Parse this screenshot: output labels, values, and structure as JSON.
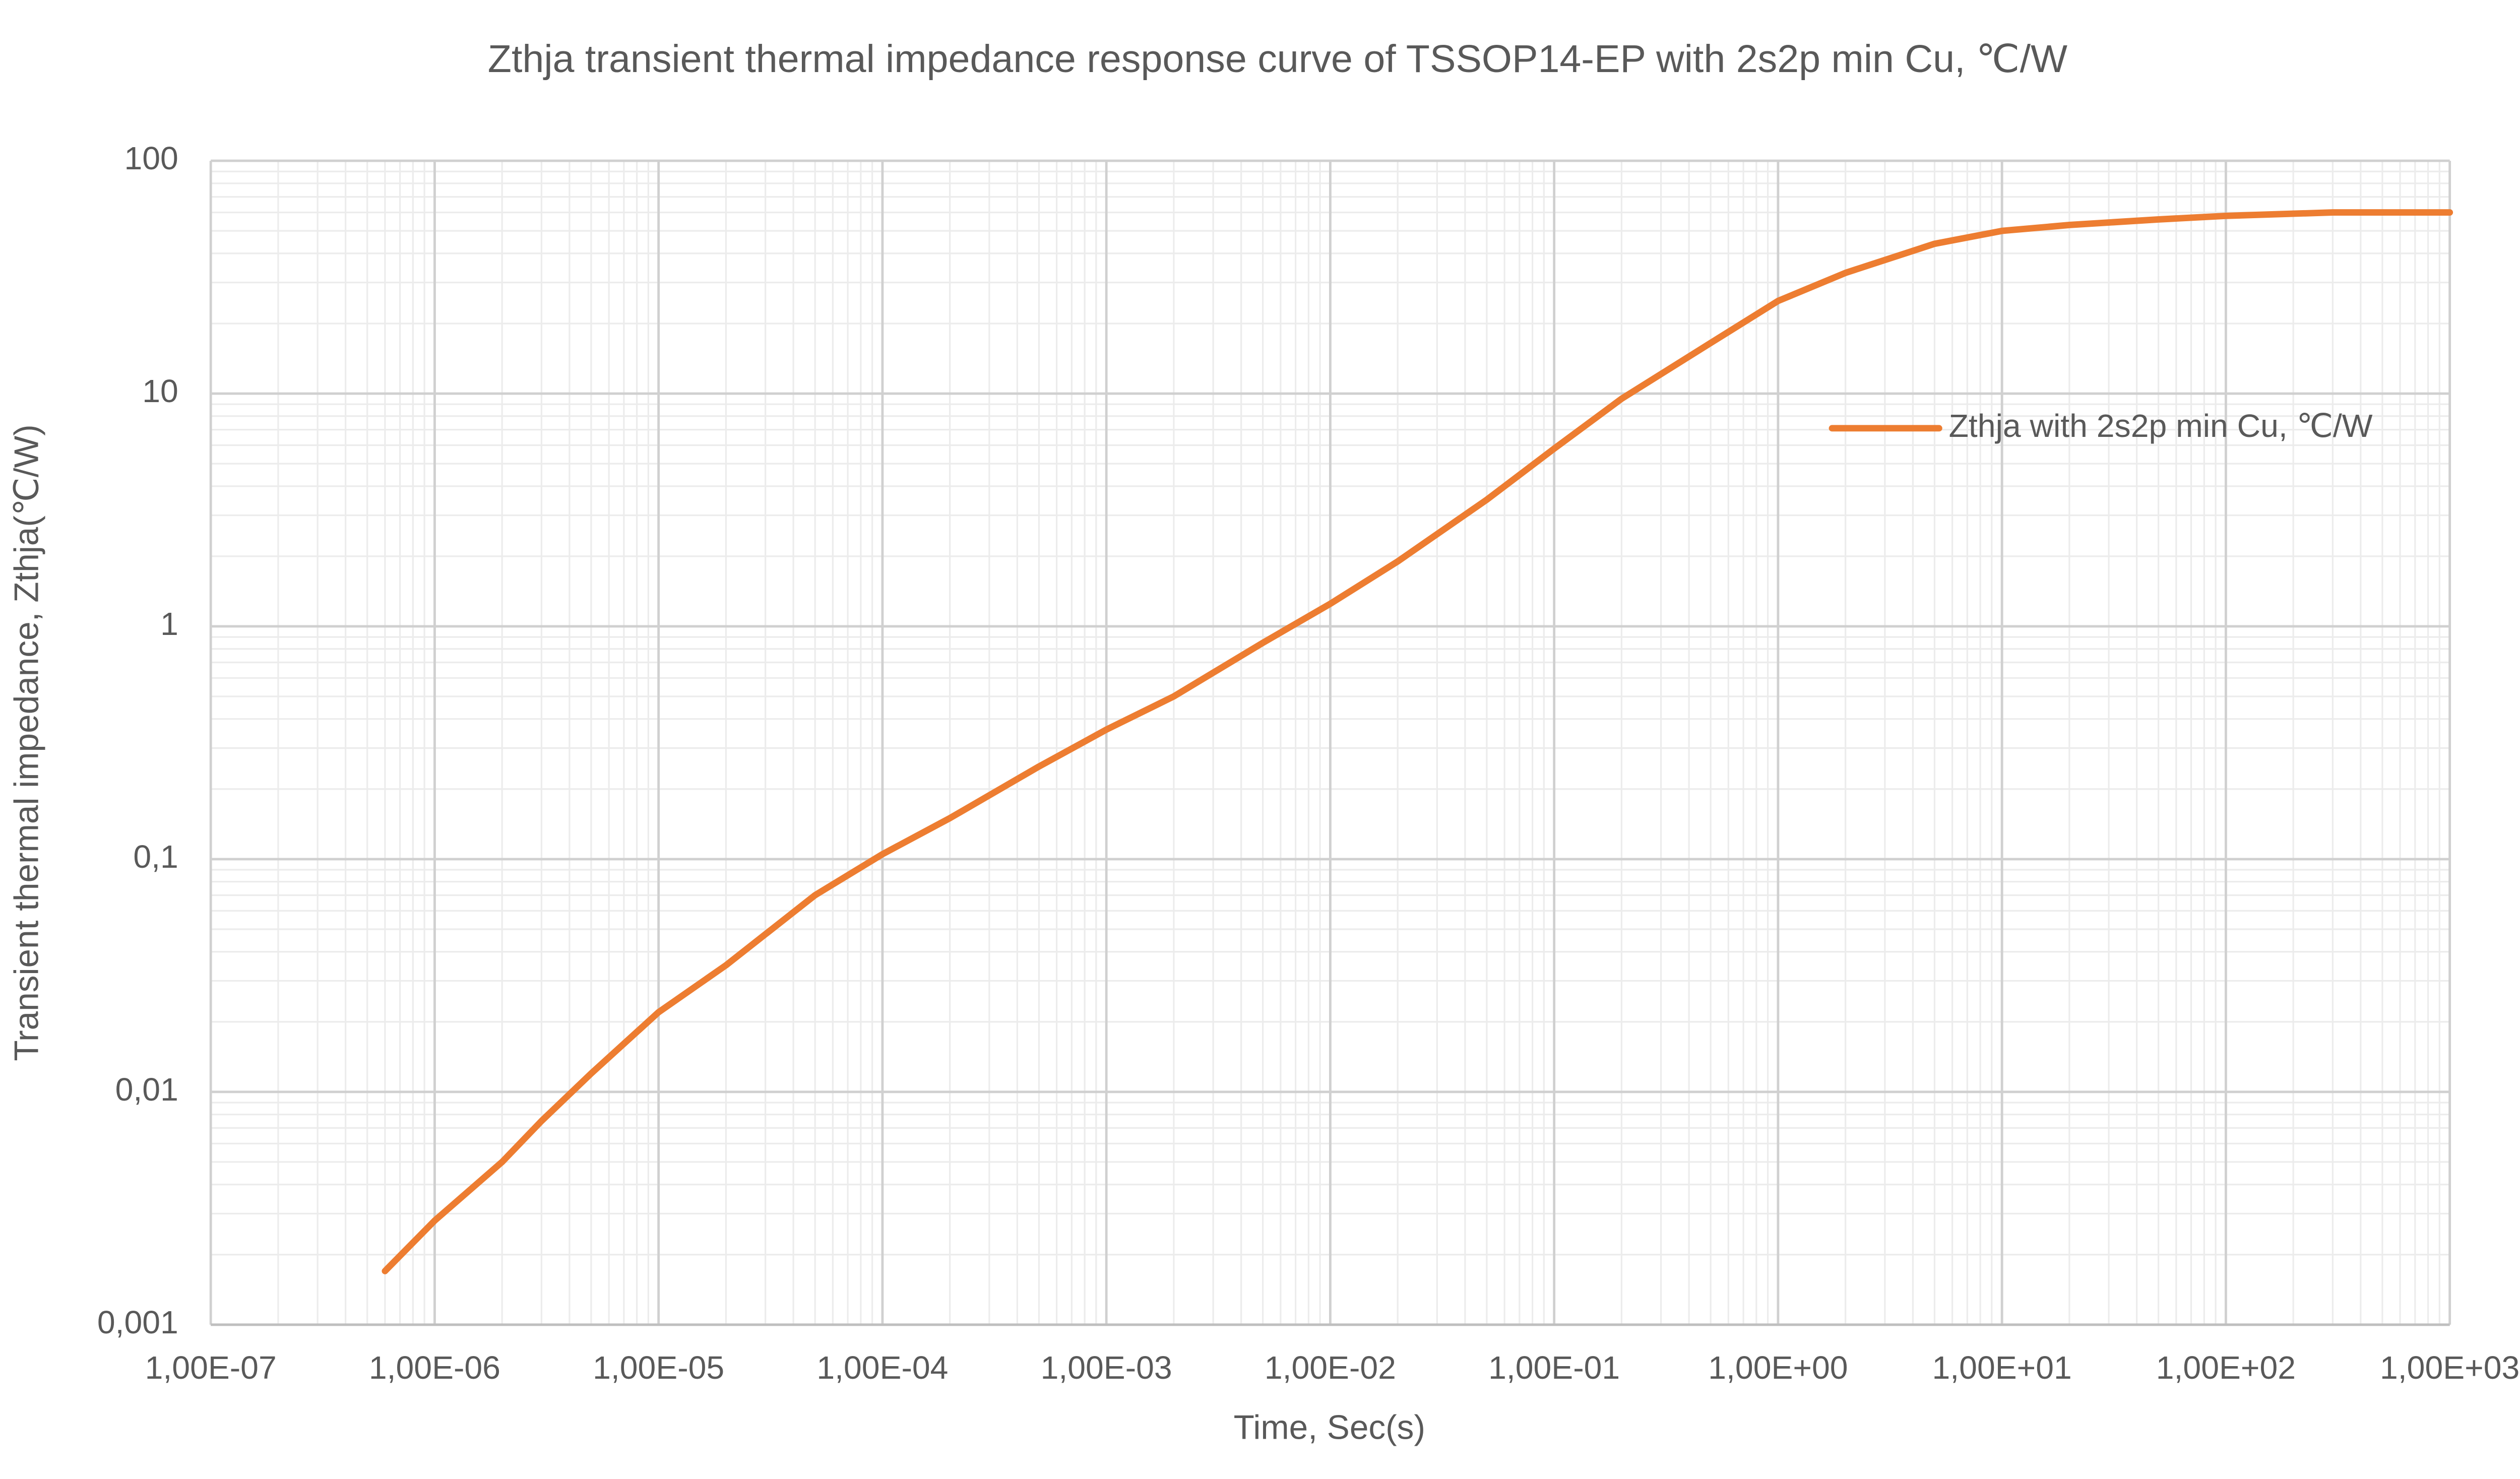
{
  "chart_data": {
    "type": "line",
    "title": "Zthja transient thermal impedance response curve of TSSOP14-EP with 2s2p min Cu, ℃/W",
    "x_label": "Time, Sec(s)",
    "y_label": "Transient thermal impedance, Zthja(℃/W)",
    "x_scale": "log",
    "y_scale": "log",
    "grid": true,
    "minor_grid": true,
    "legend": "right",
    "xlim": [
      1e-07,
      1000
    ],
    "ylim": [
      0.001,
      100
    ],
    "xticks": [
      {
        "value": 1e-07,
        "label": "1,00E-07"
      },
      {
        "value": 1e-06,
        "label": "1,00E-06"
      },
      {
        "value": 1e-05,
        "label": "1,00E-05"
      },
      {
        "value": 0.0001,
        "label": "1,00E-04"
      },
      {
        "value": 0.001,
        "label": "1,00E-03"
      },
      {
        "value": 0.01,
        "label": "1,00E-02"
      },
      {
        "value": 0.1,
        "label": "1,00E-01"
      },
      {
        "value": 1,
        "label": "1,00E+00"
      },
      {
        "value": 10,
        "label": "1,00E+01"
      },
      {
        "value": 100,
        "label": "1,00E+02"
      },
      {
        "value": 1000,
        "label": "1,00E+03"
      }
    ],
    "yticks": [
      {
        "value": 0.001,
        "label": "0,001"
      },
      {
        "value": 0.01,
        "label": "0,01"
      },
      {
        "value": 0.1,
        "label": "0,1"
      },
      1,
      10,
      100
    ],
    "x": [
      6e-07,
      1e-06,
      2e-06,
      3e-06,
      5e-06,
      1e-05,
      2e-05,
      5e-05,
      0.0001,
      0.0002,
      0.0005,
      0.001,
      0.002,
      0.005,
      0.01,
      0.02,
      0.05,
      0.1,
      0.2,
      0.5,
      1,
      2,
      5,
      10,
      20,
      50,
      100,
      300,
      1000
    ],
    "series": [
      {
        "name": "Zthja with 2s2p min Cu, ℃/W",
        "color": "#ed7d31",
        "values": [
          0.0017,
          0.0028,
          0.005,
          0.0075,
          0.012,
          0.022,
          0.035,
          0.07,
          0.105,
          0.15,
          0.25,
          0.36,
          0.5,
          0.85,
          1.25,
          1.9,
          3.5,
          5.8,
          9.5,
          16.5,
          25,
          33,
          44,
          50,
          53,
          56,
          58,
          60,
          60
        ]
      }
    ]
  }
}
